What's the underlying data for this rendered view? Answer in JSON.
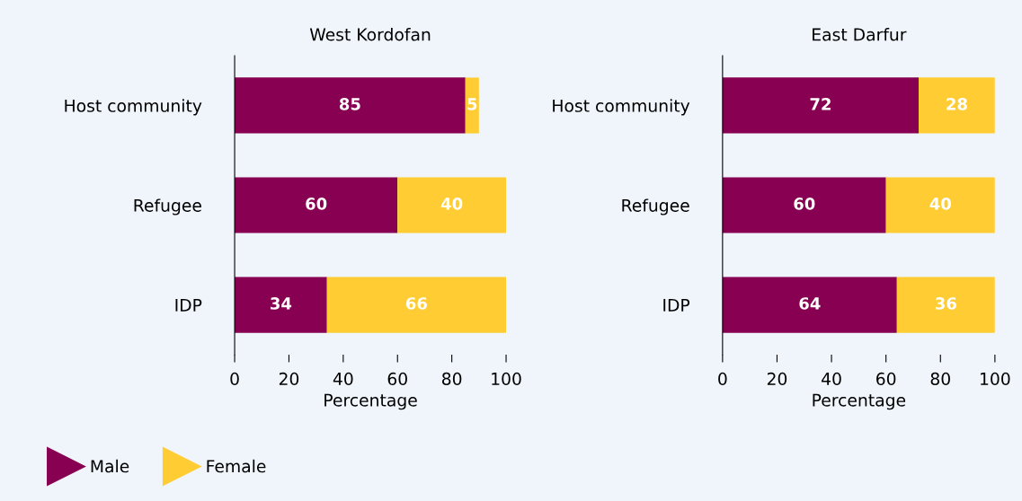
{
  "chart_data": [
    {
      "type": "bar",
      "title": "West Kordofan",
      "xlabel": "Percentage",
      "orientation": "horizontal",
      "stacked": true,
      "categories": [
        "Host community",
        "Refugee",
        "IDP"
      ],
      "series": [
        {
          "name": "Male",
          "color": "#870052",
          "values": [
            85,
            60,
            34
          ]
        },
        {
          "name": "Female",
          "color": "#ffcd33",
          "values": [
            5,
            40,
            66
          ]
        }
      ],
      "xlim": [
        0,
        100
      ],
      "xticks": [
        0,
        20,
        40,
        60,
        80,
        100
      ],
      "data_labels": true,
      "grid": false,
      "legend": "bottom left",
      "marker": "triangle"
    },
    {
      "type": "bar",
      "title": "East Darfur",
      "xlabel": "Percentage",
      "orientation": "horizontal",
      "stacked": true,
      "categories": [
        "Host community",
        "Refugee",
        "IDP"
      ],
      "series": [
        {
          "color": "#870052",
          "values": [
            72,
            60,
            64
          ]
        },
        {
          "color": "#ffcd33",
          "values": [
            28,
            40,
            36
          ]
        }
      ],
      "xlim": [
        0,
        100
      ],
      "xticks": [
        0,
        20,
        40,
        60,
        80,
        100
      ],
      "data_labels": true,
      "grid": false,
      "legend": false
    }
  ]
}
